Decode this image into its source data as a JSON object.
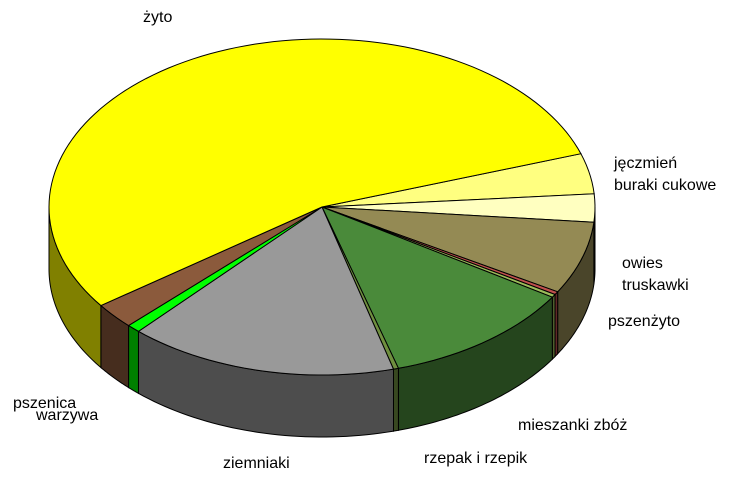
{
  "chart_data": {
    "type": "pie",
    "categories": [
      "jęczmień",
      "buraki cukowe",
      "owies",
      "truskawki",
      "pszenżyto",
      "mieszanki zbóż",
      "rzepak i rzepik",
      "ziemniaki",
      "warzywa",
      "pszenica",
      "żyto"
    ],
    "values": [
      3.9,
      2.7,
      7,
      0.3,
      0.3,
      11.5,
      0.3,
      16,
      0.8,
      2.5,
      55
    ],
    "colors": [
      "#ffff80",
      "#ffffc0",
      "#948a54",
      "#c0504d",
      "#9bbb59",
      "#4a8a3a",
      "#6f8f3f",
      "#999999",
      "#00ff00",
      "#8b5a3c",
      "#ffff00"
    ]
  }
}
